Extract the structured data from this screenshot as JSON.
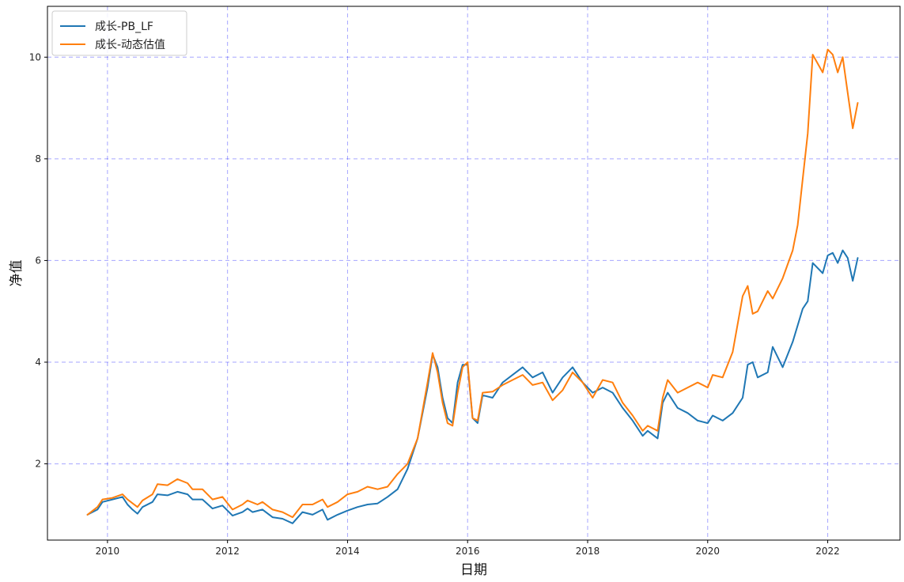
{
  "chart_data": {
    "type": "line",
    "title": "",
    "xlabel": "日期",
    "ylabel": "净值",
    "x_axis": {
      "type": "date",
      "range": [
        "2009-01-01",
        "2023-03-15"
      ],
      "ticks": [
        "2010",
        "2012",
        "2014",
        "2016",
        "2018",
        "2020",
        "2022"
      ]
    },
    "y_axis": {
      "range": [
        0.5,
        11.0
      ],
      "ticks": [
        "2",
        "4",
        "6",
        "8",
        "10"
      ]
    },
    "grid": true,
    "grid_color": "#0000ff",
    "legend_placement": "top-left",
    "series": [
      {
        "name": "成长-PB_LF",
        "color": "#1f77b4",
        "points": [
          [
            "2009-09",
            1.0
          ],
          [
            "2009-11",
            1.1
          ],
          [
            "2009-12",
            1.25
          ],
          [
            "2010-02",
            1.3
          ],
          [
            "2010-04",
            1.35
          ],
          [
            "2010-05",
            1.2
          ],
          [
            "2010-06",
            1.1
          ],
          [
            "2010-07",
            1.02
          ],
          [
            "2010-08",
            1.15
          ],
          [
            "2010-10",
            1.25
          ],
          [
            "2010-11",
            1.4
          ],
          [
            "2011-01",
            1.38
          ],
          [
            "2011-03",
            1.45
          ],
          [
            "2011-05",
            1.4
          ],
          [
            "2011-06",
            1.3
          ],
          [
            "2011-08",
            1.3
          ],
          [
            "2011-10",
            1.12
          ],
          [
            "2011-12",
            1.18
          ],
          [
            "2012-02",
            0.98
          ],
          [
            "2012-04",
            1.05
          ],
          [
            "2012-05",
            1.12
          ],
          [
            "2012-06",
            1.05
          ],
          [
            "2012-08",
            1.1
          ],
          [
            "2012-10",
            0.95
          ],
          [
            "2012-12",
            0.92
          ],
          [
            "2013-02",
            0.83
          ],
          [
            "2013-04",
            1.05
          ],
          [
            "2013-06",
            1.0
          ],
          [
            "2013-08",
            1.1
          ],
          [
            "2013-09",
            0.9
          ],
          [
            "2013-11",
            1.0
          ],
          [
            "2014-01",
            1.08
          ],
          [
            "2014-03",
            1.15
          ],
          [
            "2014-05",
            1.2
          ],
          [
            "2014-07",
            1.22
          ],
          [
            "2014-09",
            1.35
          ],
          [
            "2014-11",
            1.5
          ],
          [
            "2015-01",
            1.9
          ],
          [
            "2015-03",
            2.5
          ],
          [
            "2015-05",
            3.5
          ],
          [
            "2015-06",
            4.15
          ],
          [
            "2015-07",
            3.9
          ],
          [
            "2015-08",
            3.3
          ],
          [
            "2015-09",
            2.9
          ],
          [
            "2015-10",
            2.8
          ],
          [
            "2015-11",
            3.6
          ],
          [
            "2015-12",
            3.95
          ],
          [
            "2016-01",
            3.95
          ],
          [
            "2016-02",
            2.9
          ],
          [
            "2016-03",
            2.8
          ],
          [
            "2016-04",
            3.35
          ],
          [
            "2016-06",
            3.3
          ],
          [
            "2016-08",
            3.6
          ],
          [
            "2016-10",
            3.75
          ],
          [
            "2016-12",
            3.9
          ],
          [
            "2017-02",
            3.7
          ],
          [
            "2017-04",
            3.8
          ],
          [
            "2017-06",
            3.4
          ],
          [
            "2017-08",
            3.7
          ],
          [
            "2017-10",
            3.9
          ],
          [
            "2017-12",
            3.6
          ],
          [
            "2018-02",
            3.4
          ],
          [
            "2018-04",
            3.5
          ],
          [
            "2018-06",
            3.4
          ],
          [
            "2018-08",
            3.1
          ],
          [
            "2018-10",
            2.85
          ],
          [
            "2018-12",
            2.55
          ],
          [
            "2019-01",
            2.65
          ],
          [
            "2019-03",
            2.5
          ],
          [
            "2019-04",
            3.2
          ],
          [
            "2019-05",
            3.4
          ],
          [
            "2019-07",
            3.1
          ],
          [
            "2019-09",
            3.0
          ],
          [
            "2019-11",
            2.85
          ],
          [
            "2020-01",
            2.8
          ],
          [
            "2020-02",
            2.95
          ],
          [
            "2020-04",
            2.85
          ],
          [
            "2020-06",
            3.0
          ],
          [
            "2020-08",
            3.3
          ],
          [
            "2020-09",
            3.95
          ],
          [
            "2020-10",
            4.0
          ],
          [
            "2020-11",
            3.7
          ],
          [
            "2021-01",
            3.8
          ],
          [
            "2021-02",
            4.3
          ],
          [
            "2021-04",
            3.9
          ],
          [
            "2021-06",
            4.4
          ],
          [
            "2021-08",
            5.05
          ],
          [
            "2021-09",
            5.2
          ],
          [
            "2021-10",
            5.95
          ],
          [
            "2021-12",
            5.75
          ],
          [
            "2022-01",
            6.1
          ],
          [
            "2022-02",
            6.15
          ],
          [
            "2022-03",
            5.95
          ],
          [
            "2022-04",
            6.2
          ],
          [
            "2022-05",
            6.05
          ],
          [
            "2022-06",
            5.6
          ],
          [
            "2022-07",
            6.05
          ]
        ]
      },
      {
        "name": "成长-动态估值",
        "color": "#ff7f0e",
        "points": [
          [
            "2009-09",
            1.0
          ],
          [
            "2009-11",
            1.15
          ],
          [
            "2009-12",
            1.3
          ],
          [
            "2010-02",
            1.33
          ],
          [
            "2010-04",
            1.4
          ],
          [
            "2010-05",
            1.3
          ],
          [
            "2010-07",
            1.15
          ],
          [
            "2010-08",
            1.28
          ],
          [
            "2010-10",
            1.4
          ],
          [
            "2010-11",
            1.6
          ],
          [
            "2011-01",
            1.58
          ],
          [
            "2011-03",
            1.7
          ],
          [
            "2011-05",
            1.62
          ],
          [
            "2011-06",
            1.5
          ],
          [
            "2011-08",
            1.5
          ],
          [
            "2011-10",
            1.3
          ],
          [
            "2011-12",
            1.35
          ],
          [
            "2012-02",
            1.1
          ],
          [
            "2012-04",
            1.2
          ],
          [
            "2012-05",
            1.28
          ],
          [
            "2012-07",
            1.2
          ],
          [
            "2012-08",
            1.25
          ],
          [
            "2012-10",
            1.1
          ],
          [
            "2012-12",
            1.05
          ],
          [
            "2013-02",
            0.95
          ],
          [
            "2013-04",
            1.2
          ],
          [
            "2013-06",
            1.2
          ],
          [
            "2013-08",
            1.3
          ],
          [
            "2013-09",
            1.15
          ],
          [
            "2013-11",
            1.25
          ],
          [
            "2014-01",
            1.4
          ],
          [
            "2014-03",
            1.45
          ],
          [
            "2014-05",
            1.55
          ],
          [
            "2014-07",
            1.5
          ],
          [
            "2014-09",
            1.55
          ],
          [
            "2014-11",
            1.8
          ],
          [
            "2015-01",
            2.0
          ],
          [
            "2015-03",
            2.5
          ],
          [
            "2015-05",
            3.6
          ],
          [
            "2015-06",
            4.18
          ],
          [
            "2015-07",
            3.8
          ],
          [
            "2015-08",
            3.2
          ],
          [
            "2015-09",
            2.8
          ],
          [
            "2015-10",
            2.75
          ],
          [
            "2015-11",
            3.4
          ],
          [
            "2015-12",
            3.9
          ],
          [
            "2016-01",
            4.0
          ],
          [
            "2016-02",
            2.9
          ],
          [
            "2016-03",
            2.85
          ],
          [
            "2016-04",
            3.4
          ],
          [
            "2016-06",
            3.42
          ],
          [
            "2016-08",
            3.55
          ],
          [
            "2016-10",
            3.65
          ],
          [
            "2016-12",
            3.75
          ],
          [
            "2017-02",
            3.55
          ],
          [
            "2017-04",
            3.6
          ],
          [
            "2017-06",
            3.25
          ],
          [
            "2017-08",
            3.45
          ],
          [
            "2017-10",
            3.8
          ],
          [
            "2017-12",
            3.6
          ],
          [
            "2018-02",
            3.3
          ],
          [
            "2018-04",
            3.65
          ],
          [
            "2018-06",
            3.6
          ],
          [
            "2018-08",
            3.2
          ],
          [
            "2018-10",
            2.95
          ],
          [
            "2018-12",
            2.65
          ],
          [
            "2019-01",
            2.75
          ],
          [
            "2019-03",
            2.65
          ],
          [
            "2019-04",
            3.3
          ],
          [
            "2019-05",
            3.65
          ],
          [
            "2019-07",
            3.4
          ],
          [
            "2019-09",
            3.5
          ],
          [
            "2019-11",
            3.6
          ],
          [
            "2020-01",
            3.5
          ],
          [
            "2020-02",
            3.75
          ],
          [
            "2020-04",
            3.7
          ],
          [
            "2020-06",
            4.2
          ],
          [
            "2020-08",
            5.3
          ],
          [
            "2020-09",
            5.5
          ],
          [
            "2020-10",
            4.95
          ],
          [
            "2020-11",
            5.0
          ],
          [
            "2021-01",
            5.4
          ],
          [
            "2021-02",
            5.25
          ],
          [
            "2021-04",
            5.65
          ],
          [
            "2021-06",
            6.2
          ],
          [
            "2021-07",
            6.7
          ],
          [
            "2021-08",
            7.6
          ],
          [
            "2021-09",
            8.5
          ],
          [
            "2021-10",
            10.05
          ],
          [
            "2021-12",
            9.7
          ],
          [
            "2022-01",
            10.15
          ],
          [
            "2022-02",
            10.05
          ],
          [
            "2022-03",
            9.7
          ],
          [
            "2022-04",
            10.0
          ],
          [
            "2022-05",
            9.3
          ],
          [
            "2022-06",
            8.6
          ],
          [
            "2022-07",
            9.1
          ]
        ]
      }
    ]
  }
}
